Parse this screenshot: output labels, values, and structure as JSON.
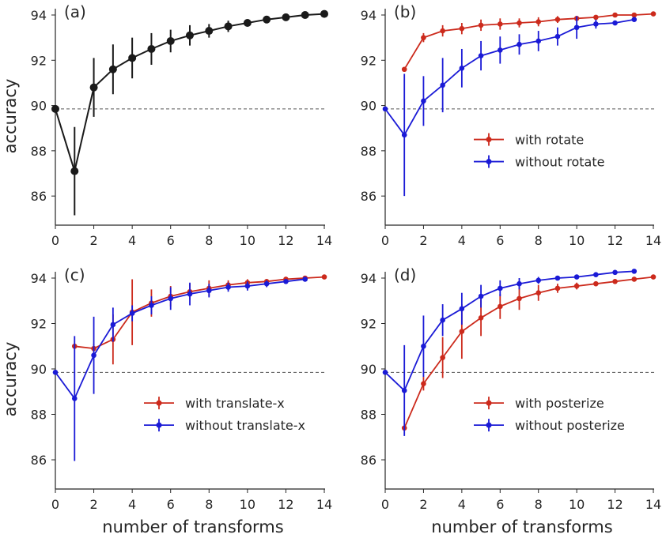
{
  "figure": {
    "xlabel": "number of transforms",
    "ylabel": "accuracy"
  },
  "chart_data": [
    {
      "type": "line",
      "panel_label": "(a)",
      "xlim": [
        0,
        14
      ],
      "ylim": [
        85,
        94.5
      ],
      "xticks": [
        0,
        2,
        4,
        6,
        8,
        10,
        12,
        14
      ],
      "yticks": [
        86,
        88,
        90,
        92,
        94
      ],
      "xlabel": "",
      "ylabel": "accuracy",
      "baseline": 89.85,
      "legend": null,
      "series": [
        {
          "name": "",
          "color": "#1a1a1a",
          "x": [
            0,
            1,
            2,
            3,
            4,
            5,
            6,
            7,
            8,
            9,
            10,
            11,
            12,
            13,
            14
          ],
          "y": [
            89.85,
            87.1,
            90.8,
            91.6,
            92.1,
            92.5,
            92.85,
            93.1,
            93.3,
            93.5,
            93.65,
            93.8,
            93.9,
            94.0,
            94.05
          ],
          "err": [
            0,
            1.95,
            1.3,
            1.1,
            0.9,
            0.7,
            0.5,
            0.45,
            0.3,
            0.25,
            0.15,
            0.1,
            0.1,
            0.08,
            0.05
          ]
        }
      ]
    },
    {
      "type": "line",
      "panel_label": "(b)",
      "xlim": [
        0,
        14
      ],
      "ylim": [
        85,
        94.5
      ],
      "xticks": [
        0,
        2,
        4,
        6,
        8,
        10,
        12,
        14
      ],
      "yticks": [
        86,
        88,
        90,
        92,
        94
      ],
      "xlabel": "",
      "ylabel": "",
      "baseline": 89.85,
      "legend": "center-right",
      "series": [
        {
          "name": "with rotate",
          "color": "#cc2a1c",
          "x": [
            1,
            2,
            3,
            4,
            5,
            6,
            7,
            8,
            9,
            10,
            11,
            12,
            13,
            14
          ],
          "y": [
            91.6,
            93.0,
            93.3,
            93.4,
            93.55,
            93.6,
            93.65,
            93.7,
            93.8,
            93.85,
            93.9,
            94.0,
            94.0,
            94.05
          ],
          "err": [
            0.05,
            0.2,
            0.25,
            0.25,
            0.25,
            0.25,
            0.2,
            0.2,
            0.15,
            0.1,
            0.08,
            0.05,
            0.05,
            0.05
          ]
        },
        {
          "name": "without rotate",
          "color": "#1a1ad6",
          "x": [
            0,
            1,
            2,
            3,
            4,
            5,
            6,
            7,
            8,
            9,
            10,
            11,
            12,
            13
          ],
          "y": [
            89.85,
            88.7,
            90.2,
            90.9,
            91.65,
            92.2,
            92.45,
            92.7,
            92.85,
            93.05,
            93.45,
            93.6,
            93.65,
            93.8
          ],
          "err": [
            0,
            2.7,
            1.1,
            1.2,
            0.85,
            0.65,
            0.6,
            0.45,
            0.45,
            0.4,
            0.5,
            0.2,
            0.1,
            0.08
          ]
        }
      ]
    },
    {
      "type": "line",
      "panel_label": "(c)",
      "xlim": [
        0,
        14
      ],
      "ylim": [
        85,
        94.5
      ],
      "xticks": [
        0,
        2,
        4,
        6,
        8,
        10,
        12,
        14
      ],
      "yticks": [
        86,
        88,
        90,
        92,
        94
      ],
      "xlabel": "number of transforms",
      "ylabel": "accuracy",
      "baseline": 89.85,
      "legend": "lower-right",
      "series": [
        {
          "name": "with translate-x",
          "color": "#cc2a1c",
          "x": [
            1,
            2,
            3,
            4,
            5,
            6,
            7,
            8,
            9,
            10,
            11,
            12,
            13,
            14
          ],
          "y": [
            91.0,
            90.9,
            91.3,
            92.5,
            92.9,
            93.2,
            93.4,
            93.55,
            93.7,
            93.8,
            93.85,
            93.95,
            94.0,
            94.05
          ],
          "err": [
            0.05,
            0.2,
            1.1,
            1.45,
            0.6,
            0.45,
            0.35,
            0.35,
            0.2,
            0.15,
            0.1,
            0.1,
            0.05,
            0.05
          ]
        },
        {
          "name": "without translate-x",
          "color": "#1a1ad6",
          "x": [
            0,
            1,
            2,
            3,
            4,
            5,
            6,
            7,
            8,
            9,
            10,
            11,
            12,
            13
          ],
          "y": [
            89.85,
            88.7,
            90.6,
            91.95,
            92.45,
            92.8,
            93.1,
            93.3,
            93.45,
            93.6,
            93.65,
            93.75,
            93.85,
            93.95
          ],
          "err": [
            0,
            2.75,
            1.7,
            0.75,
            0.35,
            0.4,
            0.5,
            0.5,
            0.3,
            0.2,
            0.2,
            0.15,
            0.1,
            0.08
          ]
        }
      ]
    },
    {
      "type": "line",
      "panel_label": "(d)",
      "xlim": [
        0,
        14
      ],
      "ylim": [
        85,
        94.5
      ],
      "xticks": [
        0,
        2,
        4,
        6,
        8,
        10,
        12,
        14
      ],
      "yticks": [
        86,
        88,
        90,
        92,
        94
      ],
      "xlabel": "number of transforms",
      "ylabel": "",
      "baseline": 89.85,
      "legend": "lower-right",
      "series": [
        {
          "name": "with posterize",
          "color": "#cc2a1c",
          "x": [
            1,
            2,
            3,
            4,
            5,
            6,
            7,
            8,
            9,
            10,
            11,
            12,
            13,
            14
          ],
          "y": [
            87.4,
            89.35,
            90.5,
            91.65,
            92.25,
            92.75,
            93.1,
            93.35,
            93.55,
            93.65,
            93.75,
            93.85,
            93.95,
            94.05
          ],
          "err": [
            0.05,
            0.3,
            0.9,
            1.2,
            0.8,
            0.55,
            0.5,
            0.35,
            0.2,
            0.15,
            0.1,
            0.1,
            0.05,
            0.05
          ]
        },
        {
          "name": "without posterize",
          "color": "#1a1ad6",
          "x": [
            0,
            1,
            2,
            3,
            4,
            5,
            6,
            7,
            8,
            9,
            10,
            11,
            12,
            13
          ],
          "y": [
            89.85,
            89.05,
            91.0,
            92.15,
            92.65,
            93.2,
            93.55,
            93.75,
            93.9,
            94.0,
            94.05,
            94.15,
            94.25,
            94.3
          ],
          "err": [
            0,
            2.0,
            1.35,
            0.7,
            0.7,
            0.5,
            0.35,
            0.25,
            0.15,
            0.1,
            0.08,
            0.08,
            0.05,
            0.05
          ]
        }
      ]
    }
  ]
}
